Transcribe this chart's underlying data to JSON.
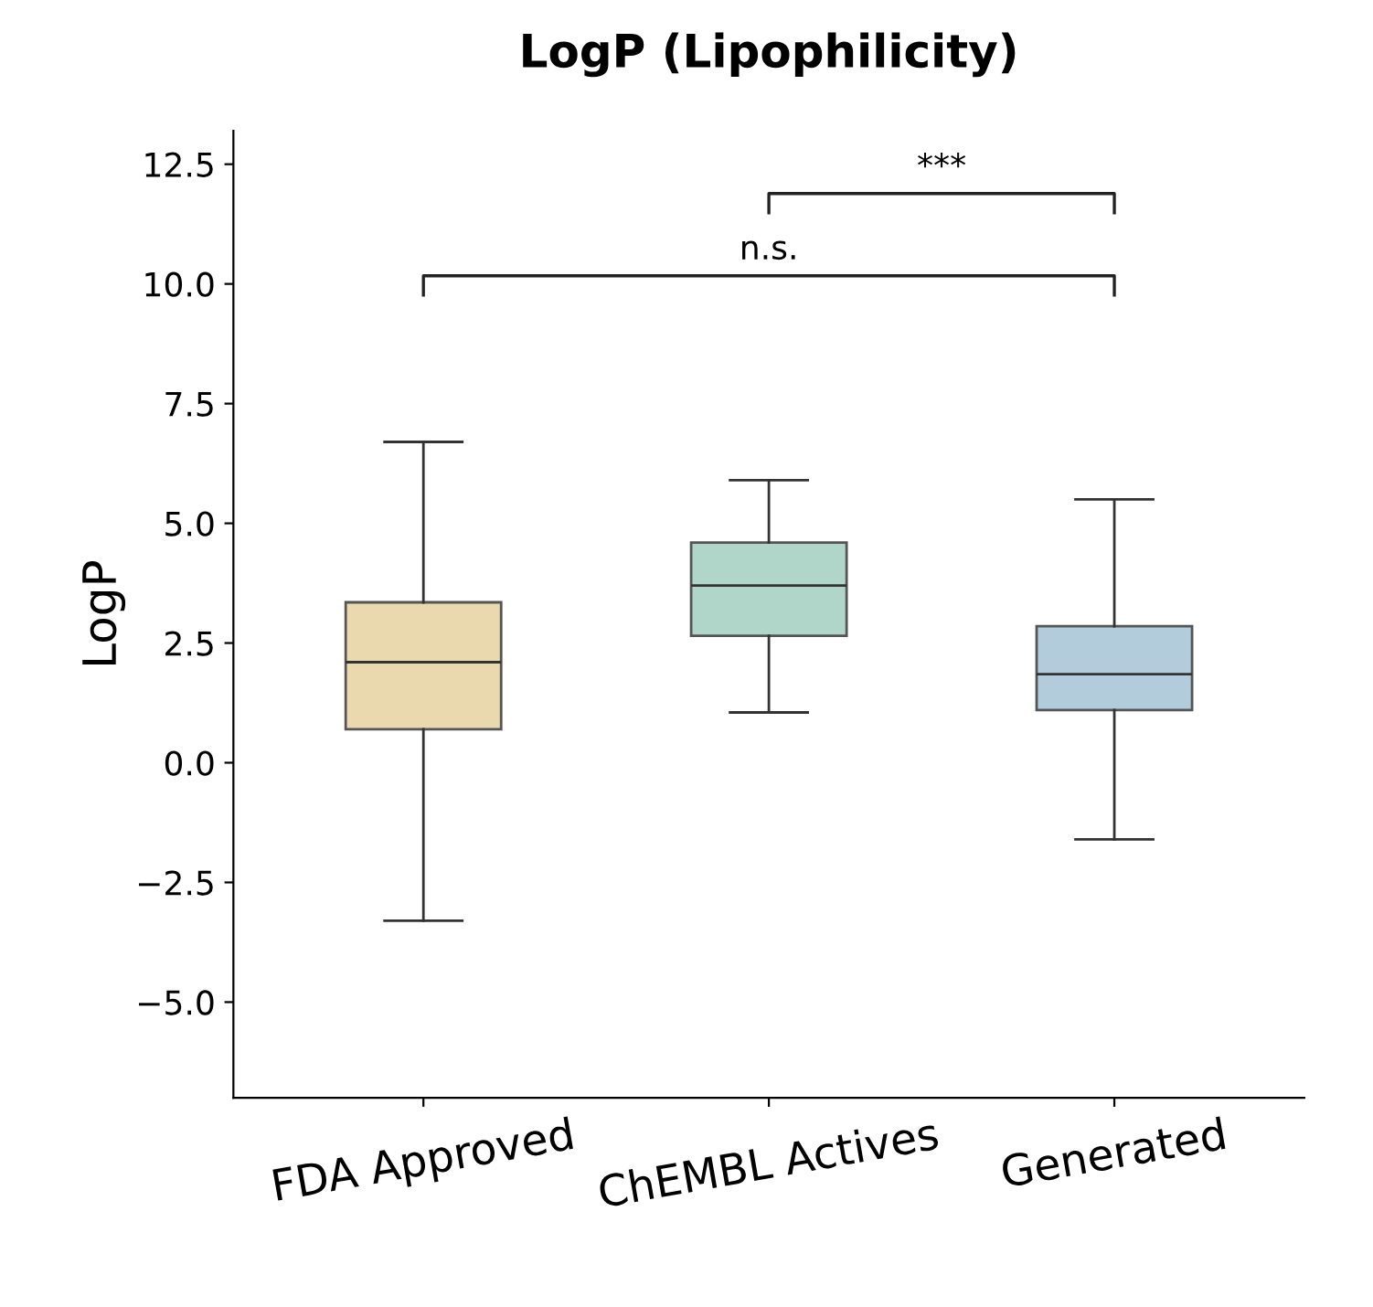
{
  "chart_data": {
    "type": "box",
    "title": "LogP (Lipophilicity)",
    "ylabel": "LogP",
    "categories": [
      "FDA Approved",
      "ChEMBL Actives",
      "Generated"
    ],
    "colors": [
      "#ead8ae",
      "#b0d6c9",
      "#b3ccdb"
    ],
    "boxes": [
      {
        "low": -3.3,
        "q1": 0.7,
        "median": 2.1,
        "q3": 3.35,
        "high": 6.7
      },
      {
        "low": 1.05,
        "q1": 2.65,
        "median": 3.7,
        "q3": 4.6,
        "high": 5.9
      },
      {
        "low": -1.6,
        "q1": 1.1,
        "median": 1.85,
        "q3": 2.85,
        "high": 5.5
      }
    ],
    "ylim": [
      -7,
      13.2
    ],
    "yticks": [
      {
        "value": -5,
        "label": "−5.0"
      },
      {
        "value": -2.5,
        "label": "−2.5"
      },
      {
        "value": 0,
        "label": "0.0"
      },
      {
        "value": 2.5,
        "label": "2.5"
      },
      {
        "value": 5,
        "label": "5.0"
      },
      {
        "value": 7.5,
        "label": "7.5"
      },
      {
        "value": 10,
        "label": "10.0"
      },
      {
        "value": 12.5,
        "label": "12.5"
      }
    ],
    "annotations": [
      "n.s.",
      "***"
    ],
    "grid": false,
    "legend": false
  }
}
